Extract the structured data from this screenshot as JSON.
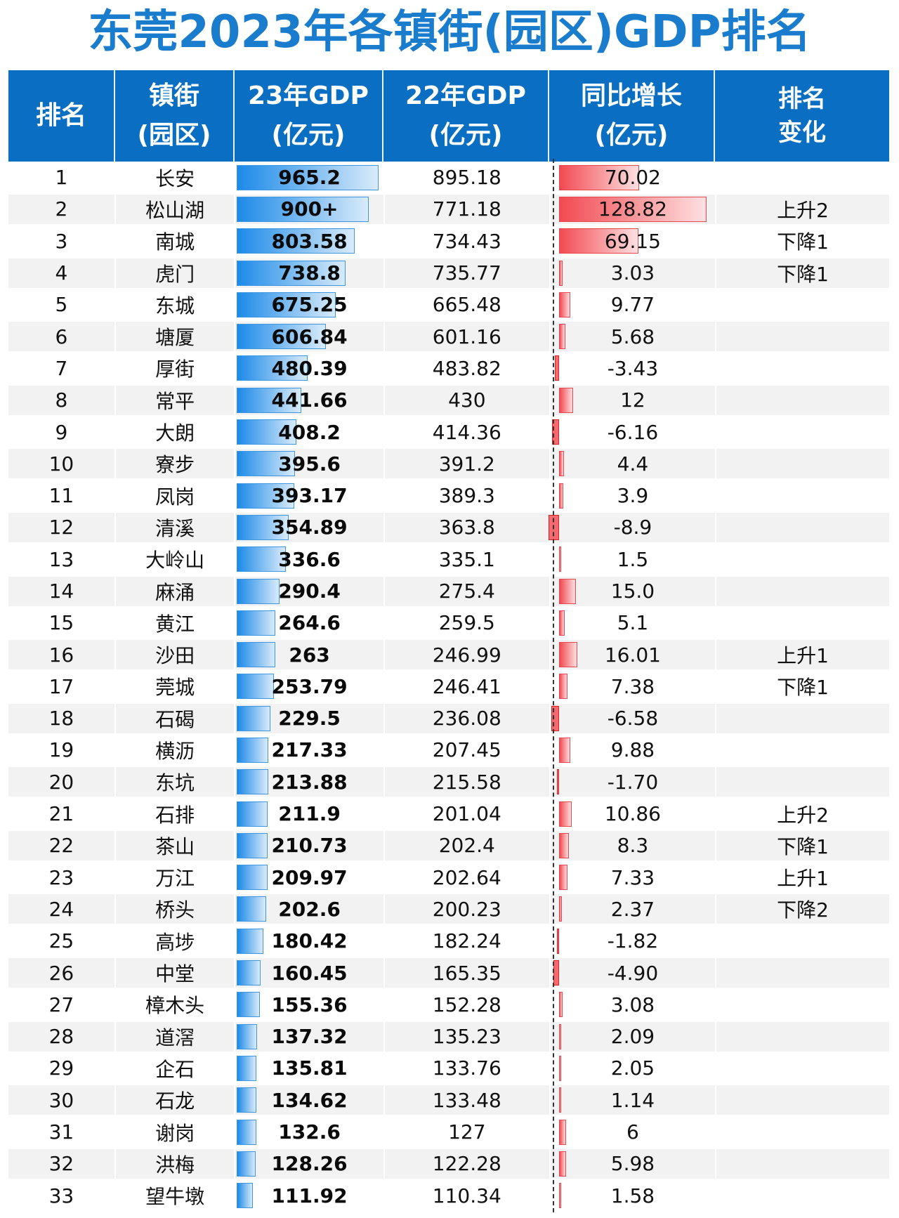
{
  "title": "东莞2023年各镇街(园区)GDP排名",
  "headers": {
    "rank": "排名",
    "town_l1": "镇街",
    "town_l2": "(园区)",
    "gdp23_l1": "23年GDP",
    "gdp23_l2": "(亿元)",
    "gdp22_l1": "22年GDP",
    "gdp22_l2": "(亿元)",
    "growth_l1": "同比增长",
    "growth_l2": "(亿元)",
    "change_l1": "排名",
    "change_l2": "变化"
  },
  "colors": {
    "title": "#1a7ccc",
    "header_bg": "#0a6fc2",
    "bar_blue": "#1c8ae8",
    "bar_red": "#f24a52"
  },
  "rows": [
    {
      "rank": "1",
      "town": "长安",
      "gdp23": "965.2",
      "gdp22": "895.18",
      "growth": "70.02",
      "change": ""
    },
    {
      "rank": "2",
      "town": "松山湖",
      "gdp23": "900+",
      "gdp22": "771.18",
      "growth": "128.82",
      "change": "上升2"
    },
    {
      "rank": "3",
      "town": "南城",
      "gdp23": "803.58",
      "gdp22": "734.43",
      "growth": "69.15",
      "change": "下降1"
    },
    {
      "rank": "4",
      "town": "虎门",
      "gdp23": "738.8",
      "gdp22": "735.77",
      "growth": "3.03",
      "change": "下降1"
    },
    {
      "rank": "5",
      "town": "东城",
      "gdp23": "675.25",
      "gdp22": "665.48",
      "growth": "9.77",
      "change": ""
    },
    {
      "rank": "6",
      "town": "塘厦",
      "gdp23": "606.84",
      "gdp22": "601.16",
      "growth": "5.68",
      "change": ""
    },
    {
      "rank": "7",
      "town": "厚街",
      "gdp23": "480.39",
      "gdp22": "483.82",
      "growth": "-3.43",
      "change": ""
    },
    {
      "rank": "8",
      "town": "常平",
      "gdp23": "441.66",
      "gdp22": "430",
      "growth": "12",
      "change": ""
    },
    {
      "rank": "9",
      "town": "大朗",
      "gdp23": "408.2",
      "gdp22": "414.36",
      "growth": "-6.16",
      "change": ""
    },
    {
      "rank": "10",
      "town": "寮步",
      "gdp23": "395.6",
      "gdp22": "391.2",
      "growth": "4.4",
      "change": ""
    },
    {
      "rank": "11",
      "town": "凤岗",
      "gdp23": "393.17",
      "gdp22": "389.3",
      "growth": "3.9",
      "change": ""
    },
    {
      "rank": "12",
      "town": "清溪",
      "gdp23": "354.89",
      "gdp22": "363.8",
      "growth": "-8.9",
      "change": ""
    },
    {
      "rank": "13",
      "town": "大岭山",
      "gdp23": "336.6",
      "gdp22": "335.1",
      "growth": "1.5",
      "change": ""
    },
    {
      "rank": "14",
      "town": "麻涌",
      "gdp23": "290.4",
      "gdp22": "275.4",
      "growth": "15.0",
      "change": ""
    },
    {
      "rank": "15",
      "town": "黄江",
      "gdp23": "264.6",
      "gdp22": "259.5",
      "growth": "5.1",
      "change": ""
    },
    {
      "rank": "16",
      "town": "沙田",
      "gdp23": "263",
      "gdp22": "246.99",
      "growth": "16.01",
      "change": "上升1"
    },
    {
      "rank": "17",
      "town": "莞城",
      "gdp23": "253.79",
      "gdp22": "246.41",
      "growth": "7.38",
      "change": "下降1"
    },
    {
      "rank": "18",
      "town": "石碣",
      "gdp23": "229.5",
      "gdp22": "236.08",
      "growth": "-6.58",
      "change": ""
    },
    {
      "rank": "19",
      "town": "横沥",
      "gdp23": "217.33",
      "gdp22": "207.45",
      "growth": "9.88",
      "change": ""
    },
    {
      "rank": "20",
      "town": "东坑",
      "gdp23": "213.88",
      "gdp22": "215.58",
      "growth": "-1.70",
      "change": ""
    },
    {
      "rank": "21",
      "town": "石排",
      "gdp23": "211.9",
      "gdp22": "201.04",
      "growth": "10.86",
      "change": "上升2"
    },
    {
      "rank": "22",
      "town": "茶山",
      "gdp23": "210.73",
      "gdp22": "202.4",
      "growth": "8.3",
      "change": "下降1"
    },
    {
      "rank": "23",
      "town": "万江",
      "gdp23": "209.97",
      "gdp22": "202.64",
      "growth": "7.33",
      "change": "上升1"
    },
    {
      "rank": "24",
      "town": "桥头",
      "gdp23": "202.6",
      "gdp22": "200.23",
      "growth": "2.37",
      "change": "下降2"
    },
    {
      "rank": "25",
      "town": "高埗",
      "gdp23": "180.42",
      "gdp22": "182.24",
      "growth": "-1.82",
      "change": ""
    },
    {
      "rank": "26",
      "town": "中堂",
      "gdp23": "160.45",
      "gdp22": "165.35",
      "growth": "-4.90",
      "change": ""
    },
    {
      "rank": "27",
      "town": "樟木头",
      "gdp23": "155.36",
      "gdp22": "152.28",
      "growth": "3.08",
      "change": ""
    },
    {
      "rank": "28",
      "town": "道滘",
      "gdp23": "137.32",
      "gdp22": "135.23",
      "growth": "2.09",
      "change": ""
    },
    {
      "rank": "29",
      "town": "企石",
      "gdp23": "135.81",
      "gdp22": "133.76",
      "growth": "2.05",
      "change": ""
    },
    {
      "rank": "30",
      "town": "石龙",
      "gdp23": "134.62",
      "gdp22": "133.48",
      "growth": "1.14",
      "change": ""
    },
    {
      "rank": "31",
      "town": "谢岗",
      "gdp23": "132.6",
      "gdp22": "127",
      "growth": "6",
      "change": ""
    },
    {
      "rank": "32",
      "town": "洪梅",
      "gdp23": "128.26",
      "gdp22": "122.28",
      "growth": "5.98",
      "change": ""
    },
    {
      "rank": "33",
      "town": "望牛墩",
      "gdp23": "111.92",
      "gdp22": "110.34",
      "growth": "1.58",
      "change": ""
    }
  ],
  "chart_data": {
    "type": "table",
    "title": "东莞2023年各镇街(园区)GDP排名",
    "columns": [
      "排名",
      "镇街(园区)",
      "23年GDP(亿元)",
      "22年GDP(亿元)",
      "同比增长(亿元)",
      "排名变化"
    ],
    "categories": [
      "长安",
      "松山湖",
      "南城",
      "虎门",
      "东城",
      "塘厦",
      "厚街",
      "常平",
      "大朗",
      "寮步",
      "凤岗",
      "清溪",
      "大岭山",
      "麻涌",
      "黄江",
      "沙田",
      "莞城",
      "石碣",
      "横沥",
      "东坑",
      "石排",
      "茶山",
      "万江",
      "桥头",
      "高埗",
      "中堂",
      "樟木头",
      "道滘",
      "企石",
      "石龙",
      "谢岗",
      "洪梅",
      "望牛墩"
    ],
    "series": [
      {
        "name": "23年GDP(亿元)",
        "values": [
          965.2,
          900,
          803.58,
          738.8,
          675.25,
          606.84,
          480.39,
          441.66,
          408.2,
          395.6,
          393.17,
          354.89,
          336.6,
          290.4,
          264.6,
          263,
          253.79,
          229.5,
          217.33,
          213.88,
          211.9,
          210.73,
          209.97,
          202.6,
          180.42,
          160.45,
          155.36,
          137.32,
          135.81,
          134.62,
          132.6,
          128.26,
          111.92
        ]
      },
      {
        "name": "22年GDP(亿元)",
        "values": [
          895.18,
          771.18,
          734.43,
          735.77,
          665.48,
          601.16,
          483.82,
          430,
          414.36,
          391.2,
          389.3,
          363.8,
          335.1,
          275.4,
          259.5,
          246.99,
          246.41,
          236.08,
          207.45,
          215.58,
          201.04,
          202.4,
          202.64,
          200.23,
          182.24,
          165.35,
          152.28,
          135.23,
          133.76,
          133.48,
          127,
          122.28,
          110.34
        ]
      },
      {
        "name": "同比增长(亿元)",
        "values": [
          70.02,
          128.82,
          69.15,
          3.03,
          9.77,
          5.68,
          -3.43,
          12,
          -6.16,
          4.4,
          3.9,
          -8.9,
          1.5,
          15.0,
          5.1,
          16.01,
          7.38,
          -6.58,
          9.88,
          -1.7,
          10.86,
          8.3,
          7.33,
          2.37,
          -1.82,
          -4.9,
          3.08,
          2.09,
          2.05,
          1.14,
          6,
          5.98,
          1.58
        ]
      }
    ],
    "rank_change": [
      "",
      "上升2",
      "下降1",
      "下降1",
      "",
      "",
      "",
      "",
      "",
      "",
      "",
      "",
      "",
      "",
      "",
      "上升1",
      "下降1",
      "",
      "",
      "",
      "上升2",
      "下降1",
      "上升1",
      "下降2",
      "",
      "",
      "",
      "",
      "",
      "",
      "",
      "",
      ""
    ]
  }
}
